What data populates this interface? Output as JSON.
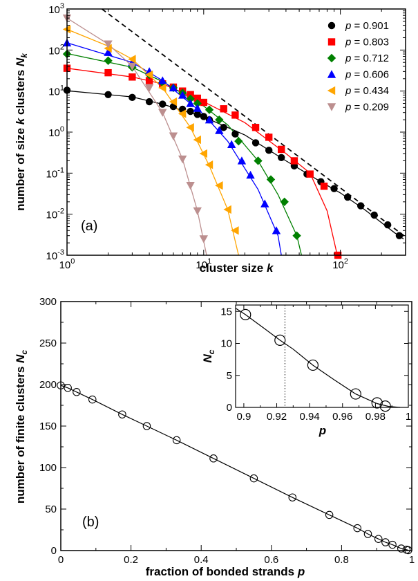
{
  "chart_data": [
    {
      "id": "a",
      "type": "scatter",
      "panel_label": "(a)",
      "xlabel": "cluster size",
      "xlabel_var": "k",
      "ylabel": "number of size",
      "ylabel_mid": "clusters",
      "ylabel_k": "k",
      "ylabel_var": "N",
      "ylabel_sub": "k",
      "xscale": "log",
      "yscale": "log",
      "xlim": [
        1,
        300
      ],
      "ylim": [
        0.001,
        1000
      ],
      "x_ticks": [
        {
          "v": 1,
          "b": "10",
          "e": "0"
        },
        {
          "v": 10,
          "b": "10",
          "e": "1"
        },
        {
          "v": 100,
          "b": "10",
          "e": "2"
        }
      ],
      "y_ticks": [
        {
          "v": 0.001,
          "b": "10",
          "e": "-3"
        },
        {
          "v": 0.01,
          "b": "10",
          "e": "-2"
        },
        {
          "v": 0.1,
          "b": "10",
          "e": "-1"
        },
        {
          "v": 1,
          "b": "10",
          "e": "0"
        },
        {
          "v": 10,
          "b": "10",
          "e": "1"
        },
        {
          "v": 100,
          "b": "10",
          "e": "2"
        },
        {
          "v": 1000,
          "b": "10",
          "e": "3"
        }
      ],
      "legend_position": "top-right",
      "reference_line": {
        "style": "dashed",
        "points": [
          [
            1.8,
            1000
          ],
          [
            300,
            0.0028
          ]
        ]
      },
      "series": [
        {
          "name": "p = 0.901",
          "var": "p",
          "val": "= 0.901",
          "color": "#000000",
          "marker": "circle",
          "points": [
            [
              1,
              10.5
            ],
            [
              2,
              8.2
            ],
            [
              3,
              7.0
            ],
            [
              4,
              5.5
            ],
            [
              5,
              4.8
            ],
            [
              6,
              4.2
            ],
            [
              7,
              3.6
            ],
            [
              8,
              3.2
            ],
            [
              9,
              2.7
            ],
            [
              10,
              2.4
            ],
            [
              11,
              2.0
            ],
            [
              14,
              1.3
            ],
            [
              17,
              0.9
            ],
            [
              24,
              0.55
            ],
            [
              30,
              0.36
            ],
            [
              37,
              0.24
            ],
            [
              46,
              0.15
            ],
            [
              57,
              0.095
            ],
            [
              72,
              0.062
            ],
            [
              90,
              0.042
            ],
            [
              113,
              0.026
            ],
            [
              141,
              0.016
            ],
            [
              177,
              0.0095
            ],
            [
              222,
              0.0055
            ],
            [
              270,
              0.003
            ]
          ],
          "curve": [
            [
              1,
              10.2
            ],
            [
              3,
              7.2
            ],
            [
              5,
              4.8
            ],
            [
              10,
              2.35
            ],
            [
              20,
              0.85
            ],
            [
              40,
              0.2
            ],
            [
              70,
              0.065
            ],
            [
              100,
              0.033
            ],
            [
              150,
              0.013
            ],
            [
              250,
              0.0035
            ],
            [
              290,
              0.0025
            ]
          ]
        },
        {
          "name": "p = 0.803",
          "var": "p",
          "val": "= 0.803",
          "color": "#ff0000",
          "marker": "square",
          "points": [
            [
              1,
              36
            ],
            [
              2,
              28
            ],
            [
              3,
              22
            ],
            [
              4,
              18
            ],
            [
              5,
              15
            ],
            [
              6,
              12.5
            ],
            [
              7,
              10
            ],
            [
              8,
              8.2
            ],
            [
              9,
              6.7
            ],
            [
              10,
              5.3
            ],
            [
              14,
              3.7
            ],
            [
              17,
              2.6
            ],
            [
              24,
              1.3
            ],
            [
              30,
              0.75
            ],
            [
              37,
              0.38
            ],
            [
              46,
              0.2
            ],
            [
              60,
              0.095
            ],
            [
              76,
              0.048
            ],
            [
              96,
              0.001
            ]
          ],
          "curve": [
            [
              1,
              36
            ],
            [
              3,
              22
            ],
            [
              5,
              15
            ],
            [
              10,
              5.5
            ],
            [
              20,
              1.7
            ],
            [
              40,
              0.3
            ],
            [
              60,
              0.1
            ],
            [
              80,
              0.012
            ],
            [
              95,
              0.001
            ]
          ]
        },
        {
          "name": "p = 0.712",
          "var": "p",
          "val": "= 0.712",
          "color": "#008000",
          "marker": "diamond",
          "points": [
            [
              1,
              80
            ],
            [
              2,
              55
            ],
            [
              3,
              38
            ],
            [
              4,
              25
            ],
            [
              5,
              16
            ],
            [
              6,
              12
            ],
            [
              7,
              9
            ],
            [
              8,
              6.5
            ],
            [
              9,
              5
            ],
            [
              11,
              3.5
            ],
            [
              13,
              2
            ],
            [
              18,
              0.6
            ],
            [
              25,
              0.2
            ],
            [
              31,
              0.07
            ],
            [
              39,
              0.02
            ],
            [
              48,
              0.003
            ]
          ],
          "curve": [
            [
              1,
              82
            ],
            [
              3,
              38
            ],
            [
              5,
              17
            ],
            [
              10,
              4.3
            ],
            [
              15,
              1.5
            ],
            [
              25,
              0.2
            ],
            [
              35,
              0.03
            ],
            [
              48,
              0.003
            ],
            [
              52,
              0.001
            ]
          ]
        },
        {
          "name": "p = 0.606",
          "var": "p",
          "val": "= 0.606",
          "color": "#0000ff",
          "marker": "triangle-up",
          "points": [
            [
              1,
              150
            ],
            [
              2,
              88
            ],
            [
              3,
              50
            ],
            [
              4,
              30
            ],
            [
              5,
              18
            ],
            [
              6,
              12
            ],
            [
              7,
              8
            ],
            [
              8,
              5
            ],
            [
              9,
              3.8
            ],
            [
              11,
              2
            ],
            [
              13,
              1.1
            ],
            [
              16,
              0.5
            ],
            [
              19,
              0.2
            ],
            [
              22,
              0.09
            ],
            [
              28,
              0.018
            ],
            [
              34,
              0.004
            ]
          ],
          "curve": [
            [
              1,
              150
            ],
            [
              3,
              50
            ],
            [
              5,
              18
            ],
            [
              10,
              2.7
            ],
            [
              15,
              0.6
            ],
            [
              25,
              0.04
            ],
            [
              35,
              0.003
            ],
            [
              37,
              0.001
            ]
          ]
        },
        {
          "name": "p = 0.434",
          "var": "p",
          "val": "= 0.434",
          "color": "#ffa500",
          "marker": "triangle-left",
          "points": [
            [
              1,
              320
            ],
            [
              2,
              110
            ],
            [
              3,
              60
            ],
            [
              4,
              25
            ],
            [
              5,
              12
            ],
            [
              6,
              5.5
            ],
            [
              7,
              2.8
            ],
            [
              8,
              1.3
            ],
            [
              9,
              0.65
            ],
            [
              10,
              0.3
            ],
            [
              11,
              0.16
            ],
            [
              13,
              0.05
            ],
            [
              15,
              0.013
            ],
            [
              17,
              0.004
            ]
          ],
          "curve": [
            [
              1,
              320
            ],
            [
              2,
              125
            ],
            [
              3,
              60
            ],
            [
              5,
              12
            ],
            [
              8,
              1.3
            ],
            [
              11,
              0.15
            ],
            [
              15,
              0.013
            ],
            [
              18,
              0.001
            ]
          ]
        },
        {
          "name": "p = 0.209",
          "var": "p",
          "val": "= 0.209",
          "color": "#bc8f8f",
          "marker": "triangle-down",
          "points": [
            [
              1,
              600
            ],
            [
              2,
              140
            ],
            [
              3,
              40
            ],
            [
              4,
              12
            ],
            [
              5,
              3
            ],
            [
              6,
              0.8
            ],
            [
              7,
              0.22
            ],
            [
              8,
              0.05
            ],
            [
              9,
              0.012
            ],
            [
              10,
              0.0025
            ]
          ],
          "curve": [
            [
              1,
              600
            ],
            [
              2,
              140
            ],
            [
              3,
              40
            ],
            [
              5,
              3
            ],
            [
              7,
              0.22
            ],
            [
              9,
              0.012
            ],
            [
              10.5,
              0.001
            ]
          ]
        }
      ]
    },
    {
      "id": "b",
      "type": "line",
      "panel_label": "(b)",
      "xlabel": "fraction of bonded strands",
      "xlabel_var": "p",
      "ylabel": "number of finite clusters",
      "ylabel_var": "N",
      "ylabel_sub": "c",
      "xlim": [
        0,
        1
      ],
      "ylim": [
        0,
        300
      ],
      "x_ticks": [
        "0",
        "0.2",
        "0.4",
        "0.6",
        "0.8",
        "1"
      ],
      "x_tick_values": [
        0,
        0.2,
        0.4,
        0.6,
        0.8,
        1
      ],
      "y_ticks": [
        "0",
        "50",
        "100",
        "150",
        "200",
        "250",
        "300"
      ],
      "y_tick_values": [
        0,
        50,
        100,
        150,
        200,
        250,
        300
      ],
      "marker": "open-circle",
      "x": [
        0.0,
        0.02,
        0.045,
        0.09,
        0.175,
        0.245,
        0.33,
        0.435,
        0.55,
        0.66,
        0.765,
        0.845,
        0.875,
        0.905,
        0.925,
        0.945,
        0.97,
        0.985,
        0.99
      ],
      "y": [
        199,
        196,
        191,
        182,
        164,
        150,
        133,
        111,
        87,
        64,
        43,
        27,
        20,
        14,
        10,
        7,
        2.5,
        1,
        0.5
      ],
      "inset": {
        "xlabel_var": "p",
        "ylabel_var": "N",
        "ylabel_sub": "c",
        "xlim": [
          0.895,
          1.0
        ],
        "ylim": [
          0,
          16
        ],
        "x_ticks": [
          "0.9",
          "0.92",
          "0.94",
          "0.96",
          "0.98",
          "1"
        ],
        "x_tick_values": [
          0.9,
          0.92,
          0.94,
          0.96,
          0.98,
          1.0
        ],
        "y_ticks": [
          "0",
          "5",
          "10",
          "15"
        ],
        "y_tick_values": [
          0,
          5,
          10,
          15
        ],
        "vline_x": 0.925,
        "x": [
          0.901,
          0.922,
          0.942,
          0.968,
          0.981,
          0.986
        ],
        "y": [
          14.5,
          10.5,
          6.6,
          2.1,
          0.7,
          0.2
        ],
        "curve": [
          [
            0.895,
            15.5
          ],
          [
            0.901,
            14.5
          ],
          [
            0.91,
            12.8
          ],
          [
            0.922,
            10.5
          ],
          [
            0.93,
            9.1
          ],
          [
            0.942,
            6.6
          ],
          [
            0.955,
            4.3
          ],
          [
            0.968,
            2.1
          ],
          [
            0.981,
            0.6
          ],
          [
            0.988,
            0.15
          ],
          [
            0.995,
            0.0
          ]
        ]
      }
    }
  ]
}
